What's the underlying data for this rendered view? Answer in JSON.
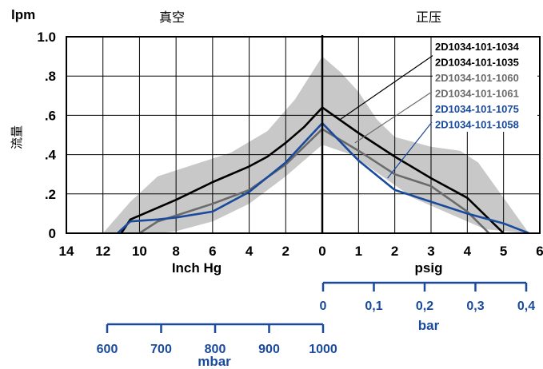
{
  "chart_data": {
    "type": "line",
    "y_unit_label": "lpm",
    "ylabel": "流量",
    "ylim": [
      0,
      1.0
    ],
    "y_ticks": [
      {
        "v": 1.0,
        "label": "1.0"
      },
      {
        "v": 0.8,
        "label": ".8"
      },
      {
        "v": 0.6,
        "label": ".6"
      },
      {
        "v": 0.4,
        "label": ".4"
      },
      {
        "v": 0.2,
        "label": ".2"
      },
      {
        "v": 0.0,
        "label": "0"
      }
    ],
    "vacuum": {
      "title": "真空",
      "xlabel": "Inch Hg",
      "xlim": [
        14,
        0
      ],
      "ticks": [
        "14",
        "12",
        "10",
        "8",
        "6",
        "4",
        "2",
        "0"
      ]
    },
    "pressure": {
      "title": "正压",
      "xlabel": "psig",
      "xlim": [
        0,
        6
      ],
      "ticks": [
        "1",
        "2",
        "3",
        "4",
        "5",
        "6"
      ]
    },
    "bar_axis": {
      "label": "bar",
      "ticks": [
        "0",
        "0,1",
        "0,2",
        "0,3",
        "0,4"
      ]
    },
    "mbar_axis": {
      "label": "mbar",
      "ticks": [
        "600",
        "700",
        "800",
        "900",
        "1000"
      ]
    },
    "legend": [
      {
        "label": "2D1034-101-1034",
        "color": "#000000"
      },
      {
        "label": "2D1034-101-1035",
        "color": "#000000"
      },
      {
        "label": "2D1034-101-1060",
        "color": "#6b6b6b"
      },
      {
        "label": "2D1034-101-1061",
        "color": "#6b6b6b"
      },
      {
        "label": "2D1034-101-1075",
        "color": "#1a4a9c"
      },
      {
        "label": "2D1034-101-1058",
        "color": "#1a4a9c"
      }
    ],
    "band": {
      "color": "#c8c8c8",
      "vacuum_upper": [
        [
          12,
          0
        ],
        [
          10.5,
          0.16
        ],
        [
          9,
          0.29
        ],
        [
          7,
          0.35
        ],
        [
          5,
          0.41
        ],
        [
          3,
          0.52
        ],
        [
          1.5,
          0.68
        ],
        [
          0,
          0.9
        ]
      ],
      "pressure_upper": [
        [
          0,
          0.9
        ],
        [
          0.5,
          0.82
        ],
        [
          1,
          0.72
        ],
        [
          1.5,
          0.58
        ],
        [
          2,
          0.49
        ],
        [
          3,
          0.44
        ],
        [
          3.8,
          0.42
        ],
        [
          4.3,
          0.36
        ],
        [
          5,
          0.18
        ],
        [
          5.7,
          0
        ]
      ],
      "pressure_lower": [
        [
          5.7,
          0
        ],
        [
          4.5,
          0.02
        ],
        [
          3.5,
          0.1
        ],
        [
          2.5,
          0.18
        ],
        [
          1.5,
          0.31
        ],
        [
          0.8,
          0.4
        ],
        [
          0,
          0.45
        ]
      ],
      "vacuum_lower": [
        [
          0,
          0.45
        ],
        [
          2,
          0.29
        ],
        [
          4,
          0.15
        ],
        [
          6,
          0.06
        ],
        [
          8,
          0.01
        ],
        [
          9,
          0
        ]
      ]
    },
    "series": [
      {
        "color": "#000000",
        "vacuum": [
          [
            11,
            0
          ],
          [
            10.5,
            0.07
          ],
          [
            8,
            0.17
          ],
          [
            6,
            0.26
          ],
          [
            4,
            0.34
          ],
          [
            3,
            0.39
          ],
          [
            2,
            0.46
          ],
          [
            1,
            0.54
          ],
          [
            0,
            0.64
          ]
        ],
        "pressure": [
          [
            0,
            0.64
          ],
          [
            1,
            0.51
          ],
          [
            2,
            0.39
          ],
          [
            3,
            0.28
          ],
          [
            4,
            0.18
          ],
          [
            5,
            0
          ]
        ]
      },
      {
        "color": "#6b6b6b",
        "vacuum": [
          [
            10,
            0
          ],
          [
            9,
            0.06
          ],
          [
            7,
            0.12
          ],
          [
            6,
            0.15
          ],
          [
            4,
            0.22
          ],
          [
            2,
            0.35
          ],
          [
            0,
            0.53
          ]
        ],
        "pressure": [
          [
            0,
            0.53
          ],
          [
            1,
            0.42
          ],
          [
            2,
            0.3
          ],
          [
            3,
            0.24
          ],
          [
            4,
            0.11
          ],
          [
            4.6,
            0
          ]
        ]
      },
      {
        "color": "#1a4a9c",
        "vacuum": [
          [
            11.2,
            0
          ],
          [
            10.5,
            0.06
          ],
          [
            9,
            0.07
          ],
          [
            8,
            0.08
          ],
          [
            6,
            0.11
          ],
          [
            4,
            0.21
          ],
          [
            2,
            0.36
          ],
          [
            1,
            0.46
          ],
          [
            0,
            0.56
          ]
        ],
        "pressure": [
          [
            0,
            0.56
          ],
          [
            1,
            0.37
          ],
          [
            2,
            0.22
          ],
          [
            3,
            0.16
          ],
          [
            4,
            0.1
          ],
          [
            5,
            0.05
          ],
          [
            5.7,
            0
          ]
        ]
      }
    ]
  }
}
